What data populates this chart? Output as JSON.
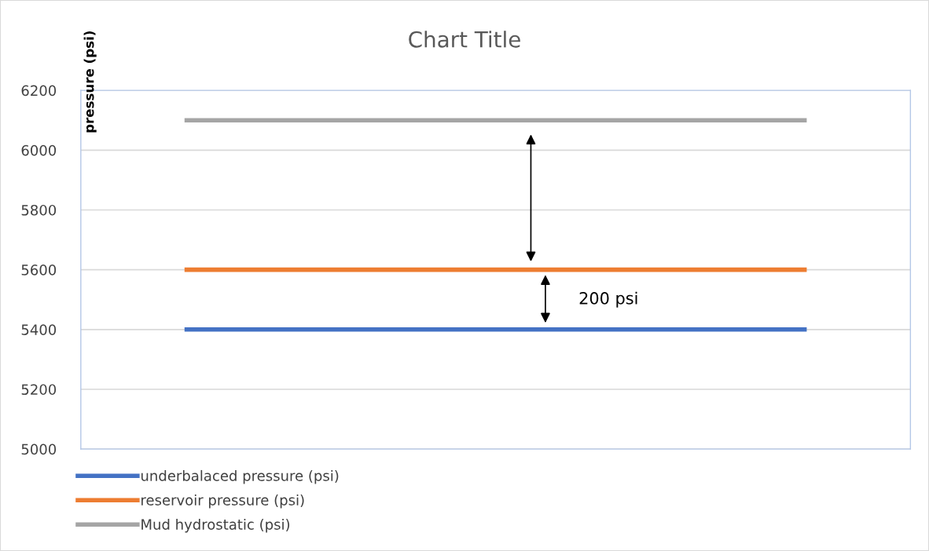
{
  "chart_data": {
    "type": "line",
    "title": "Chart Title",
    "ylabel": "pressure (psi)",
    "categories": [
      null,
      null,
      null,
      null
    ],
    "series": [
      {
        "name": "underbalaced pressure (psi)",
        "color": "#4472c4",
        "values": [
          5400,
          5400,
          5400,
          5400
        ]
      },
      {
        "name": "reservoir pressure (psi)",
        "color": "#ed7d31",
        "values": [
          5600,
          5600,
          5600,
          5600
        ]
      },
      {
        "name": "Mud hydrostatic (psi)",
        "color": "#a5a5a5",
        "values": [
          6100,
          6100,
          6100,
          6100
        ]
      }
    ],
    "annotations": [
      "200 psi"
    ],
    "ylim": [
      5000,
      6200
    ],
    "yticks": [
      5000,
      5200,
      5400,
      5600,
      5800,
      6000,
      6200
    ],
    "grid": "y",
    "legend": "bottom",
    "marker": "none",
    "line_style": "solid"
  }
}
